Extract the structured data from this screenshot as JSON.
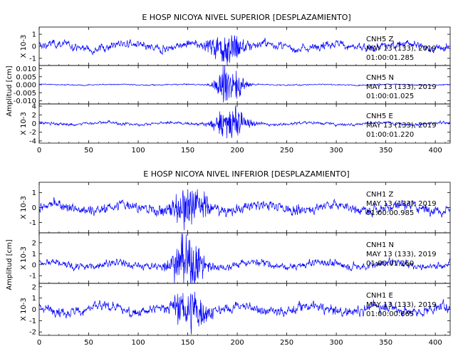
{
  "figure": {
    "top_title": "E HOSP NICOYA NIVEL SUPERIOR [DESPLAZAMIENTO]",
    "bottom_title": "E HOSP NICOYA NIVEL INFERIOR [DESPLAZAMIENTO]",
    "y_axis_label": "Amplitud [cm]"
  },
  "chart_data": [
    {
      "type": "line",
      "title": "E HOSP NICOYA NIVEL SUPERIOR [DESPLAZAMIENTO]",
      "ylabel": "Amplitud [cm]",
      "xlim": [
        0,
        415
      ],
      "x_ticks": [
        "0",
        "50",
        "100",
        "150",
        "200",
        "250",
        "300",
        "350",
        "400"
      ],
      "line_color": "#0000ff",
      "panels": [
        {
          "unit_label": "X 10-3",
          "ylim": [
            -1.6,
            1.6
          ],
          "y_ticks": [
            "-1",
            "0",
            "1"
          ],
          "annotation": [
            "CNH5   Z",
            "MAY 13 (133), 2019",
            "01:00:01.285"
          ],
          "envelope": {
            "quiet_amplitude": 0.35,
            "peak_center_x": 190,
            "peak_halfwidth": 12,
            "peak_amplitude": 1.5
          }
        },
        {
          "unit_label": "",
          "ylim": [
            -0.012,
            0.012
          ],
          "y_ticks": [
            "-0.010",
            "-0.005",
            "0.000",
            "0.005",
            "0.010"
          ],
          "annotation": [
            "CNH5   N",
            "MAY 13 (133), 2019",
            "01:00:01.025"
          ],
          "envelope": {
            "quiet_amplitude": 0.0004,
            "peak_center_x": 193,
            "peak_halfwidth": 10,
            "peak_amplitude": 0.011
          }
        },
        {
          "unit_label": "X 10-3",
          "ylim": [
            -4.5,
            4.5
          ],
          "y_ticks": [
            "-4",
            "-2",
            "0",
            "2",
            "4"
          ],
          "annotation": [
            "CNH5   E",
            "MAY 13 (133), 2019",
            "01:00:01.220"
          ],
          "envelope": {
            "quiet_amplitude": 0.35,
            "peak_center_x": 193,
            "peak_halfwidth": 12,
            "peak_amplitude": 3.6
          }
        }
      ]
    },
    {
      "type": "line",
      "title": "E HOSP NICOYA NIVEL INFERIOR [DESPLAZAMIENTO]",
      "ylabel": "Amplitud [cm]",
      "xlim": [
        0,
        415
      ],
      "x_ticks": [
        "0",
        "50",
        "100",
        "150",
        "200",
        "250",
        "300",
        "350",
        "400"
      ],
      "line_color": "#0000ff",
      "panels": [
        {
          "unit_label": "X 10-3",
          "ylim": [
            -1.7,
            1.7
          ],
          "y_ticks": [
            "-1",
            "0",
            "1"
          ],
          "annotation": [
            "CNH1   Z",
            "MAY 13 (133), 2019",
            "01:00:00.985"
          ],
          "envelope": {
            "quiet_amplitude": 0.35,
            "peak_center_x": 150,
            "peak_halfwidth": 15,
            "peak_amplitude": 1.3
          }
        },
        {
          "unit_label": "X 10-3",
          "ylim": [
            -1.7,
            2.9
          ],
          "y_ticks": [
            "-1",
            "0",
            "1",
            "2"
          ],
          "annotation": [
            "CNH1   N",
            "MAY 13 (133), 2019",
            "01:00:01.260"
          ],
          "envelope": {
            "quiet_amplitude": 0.35,
            "peak_center_x": 150,
            "peak_halfwidth": 12,
            "peak_amplitude": 2.2
          }
        },
        {
          "unit_label": "X 10-3",
          "ylim": [
            -2.3,
            2.3
          ],
          "y_ticks": [
            "-2",
            "-1",
            "0",
            "1",
            "2"
          ],
          "annotation": [
            "CNH1   E",
            "MAY 13 (133), 2019",
            "01:00:00.665"
          ],
          "envelope": {
            "quiet_amplitude": 0.45,
            "peak_center_x": 152,
            "peak_halfwidth": 12,
            "peak_amplitude": 1.9
          }
        }
      ]
    }
  ]
}
